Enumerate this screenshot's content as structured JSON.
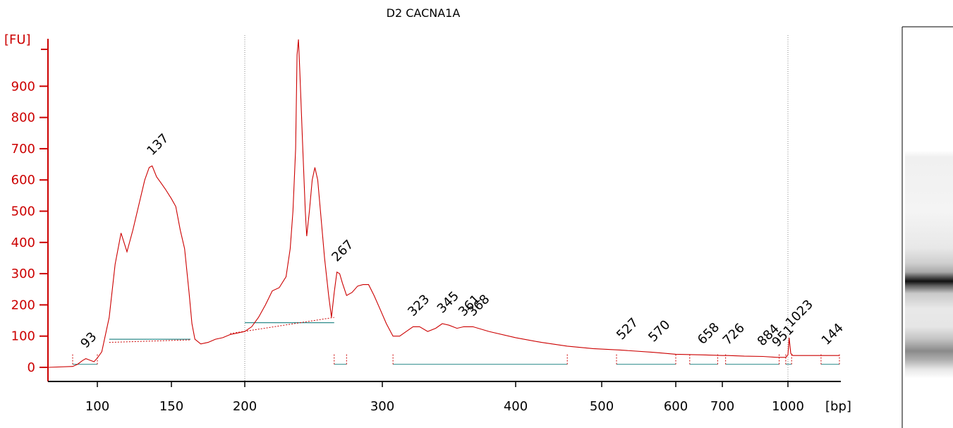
{
  "chart_data": {
    "type": "line",
    "title": "D2 CACNA1A",
    "ylabel": "[FU]",
    "xlabel": "[bp]",
    "ylim": [
      -40,
      1040
    ],
    "xlim": [
      70,
      1420
    ],
    "x_scale": "nonlinear-sizing-ladder",
    "x_ticks": [
      100,
      150,
      200,
      300,
      400,
      500,
      600,
      700,
      1000
    ],
    "y_ticks": [
      0,
      100,
      200,
      300,
      400,
      500,
      600,
      700,
      800,
      900
    ],
    "ladder_markers_bp": [
      200,
      1000
    ],
    "grid": false,
    "series": [
      {
        "color": "#cc0000",
        "x": [
          70,
          85,
          88,
          91,
          93,
          95,
          98,
          100,
          103,
          108,
          112,
          116,
          118,
          120,
          124,
          128,
          132,
          135,
          137,
          140,
          143,
          146,
          150,
          153,
          156,
          159,
          162,
          164,
          166,
          170,
          175,
          180,
          185,
          190,
          195,
          200,
          205,
          210,
          215,
          220,
          225,
          230,
          233,
          235,
          237,
          238,
          239,
          240,
          242,
          244,
          245,
          247,
          249,
          251,
          253,
          255,
          258,
          261,
          263,
          265,
          267,
          269,
          271,
          274,
          278,
          282,
          286,
          290,
          294,
          298,
          303,
          308,
          313,
          318,
          323,
          328,
          334,
          340,
          345,
          350,
          356,
          361,
          368,
          380,
          400,
          430,
          460,
          490,
          527,
          570,
          600,
          658,
          700,
          726,
          800,
          884,
          950,
          990,
          1000,
          1010,
          1023,
          1040,
          1100,
          1200,
          1300,
          1420
        ],
        "y": [
          0,
          3,
          10,
          22,
          28,
          24,
          18,
          30,
          50,
          160,
          330,
          430,
          400,
          370,
          440,
          520,
          600,
          640,
          645,
          610,
          590,
          570,
          540,
          515,
          440,
          380,
          240,
          140,
          90,
          75,
          80,
          90,
          95,
          105,
          110,
          115,
          130,
          160,
          200,
          245,
          255,
          290,
          380,
          500,
          700,
          1000,
          1050,
          950,
          720,
          500,
          420,
          500,
          600,
          640,
          600,
          500,
          350,
          230,
          160,
          240,
          305,
          300,
          270,
          230,
          240,
          260,
          265,
          265,
          230,
          190,
          140,
          100,
          100,
          115,
          130,
          130,
          115,
          125,
          140,
          135,
          125,
          130,
          130,
          115,
          95,
          80,
          68,
          60,
          55,
          48,
          42,
          40,
          38,
          38,
          36,
          35,
          32,
          32,
          40,
          95,
          45,
          38,
          38,
          38,
          38,
          38
        ]
      }
    ],
    "peak_labels": [
      {
        "label": "93",
        "x": 93,
        "y": 28
      },
      {
        "label": "137",
        "x": 137,
        "y": 645
      },
      {
        "label": "267",
        "x": 267,
        "y": 305
      },
      {
        "label": "323",
        "x": 323,
        "y": 130
      },
      {
        "label": "345",
        "x": 345,
        "y": 140
      },
      {
        "label": "361",
        "x": 361,
        "y": 130
      },
      {
        "label": "368",
        "x": 368,
        "y": 130
      },
      {
        "label": "527",
        "x": 527,
        "y": 55
      },
      {
        "label": "570",
        "x": 570,
        "y": 48
      },
      {
        "label": "658",
        "x": 658,
        "y": 40
      },
      {
        "label": "726",
        "x": 726,
        "y": 38
      },
      {
        "label": "884",
        "x": 884,
        "y": 35
      },
      {
        "label": "951",
        "x": 951,
        "y": 32
      },
      {
        "label": "1023",
        "x": 1023,
        "y": 95
      },
      {
        "label": "144",
        "x": 1420,
        "y": 38
      }
    ],
    "gel_lane": {
      "bands": [
        {
          "fraction": 0.63,
          "intensity": 0.95
        },
        {
          "fraction": 0.6,
          "intensity": 0.55
        },
        {
          "fraction": 0.86,
          "intensity": 0.6
        }
      ]
    },
    "colors": {
      "trace": "#cc0000",
      "axis_y": "#cc0000",
      "axis_x": "#000000",
      "baseline": "#2e8b8b",
      "marker_line": "#888888"
    }
  }
}
